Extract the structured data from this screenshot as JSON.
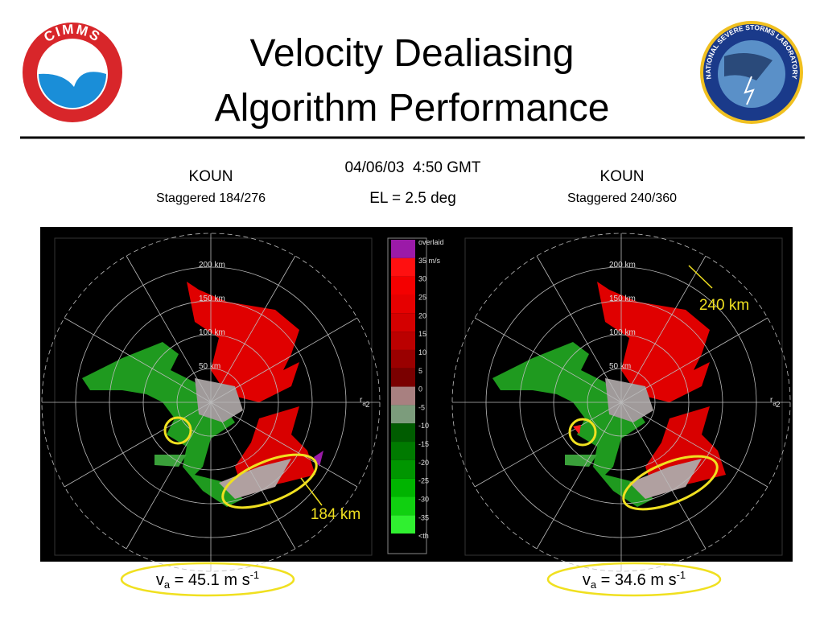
{
  "header": {
    "title_lines": [
      "Velocity Dealiasing",
      "Algorithm Performance"
    ],
    "left_logo": "CIMMS",
    "right_logo": "NATIONAL SEVERE STORMS LABORATORY"
  },
  "left_panel": {
    "radar": "KOUN",
    "mode": "Staggered 184/276"
  },
  "center": {
    "datetime": "04/06/03  4:50 GMT",
    "elevation": "EL = 2.5 deg"
  },
  "right_panel": {
    "radar": "KOUN",
    "mode": "Staggered 240/360"
  },
  "range_labels": [
    "200 km",
    "150 km",
    "100 km",
    "50 km"
  ],
  "range_marker": {
    "symbol": "r",
    "subscript": "a"
  },
  "edge_label": "2",
  "colorbar": [
    {
      "label": "overlaid",
      "color": "#9b1aa8"
    },
    {
      "label": "35 m/s",
      "color": "#ff1010"
    },
    {
      "label": "30",
      "color": "#f40000"
    },
    {
      "label": "25",
      "color": "#e60000"
    },
    {
      "label": "20",
      "color": "#d40000"
    },
    {
      "label": "15",
      "color": "#bb0000"
    },
    {
      "label": "10",
      "color": "#9a0000"
    },
    {
      "label": "5",
      "color": "#7a0000"
    },
    {
      "label": "0",
      "color": "#a88080"
    },
    {
      "label": "-5",
      "color": "#7c9c7c"
    },
    {
      "label": "-10",
      "color": "#005c00"
    },
    {
      "label": "-15",
      "color": "#007a00"
    },
    {
      "label": "-20",
      "color": "#009600"
    },
    {
      "label": "-25",
      "color": "#00b400"
    },
    {
      "label": "-30",
      "color": "#10d010"
    },
    {
      "label": "-35",
      "color": "#30f030"
    },
    {
      "label": "<th",
      "color": "#000000"
    }
  ],
  "annotations": {
    "left": "184 km",
    "right": "240 km"
  },
  "left_nyquist": {
    "symbol": "v",
    "subscript": "a",
    "text": " = 45.1 m s",
    "superscript": "-1"
  },
  "right_nyquist": {
    "symbol": "v",
    "subscript": "a",
    "text": " = 34.6 m s",
    "superscript": "-1"
  }
}
